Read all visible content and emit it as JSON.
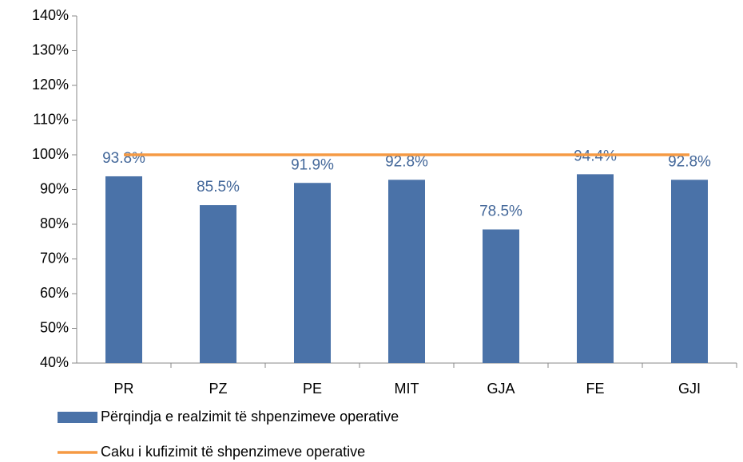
{
  "chart_data": {
    "type": "bar",
    "categories": [
      "PR",
      "PZ",
      "PE",
      "MIT",
      "GJA",
      "FE",
      "GJI"
    ],
    "series": [
      {
        "name": "Përqindja e realzimit të shpenzimeve operative",
        "color": "#4a72a8",
        "type": "bar",
        "values": [
          93.8,
          85.5,
          91.9,
          92.8,
          78.5,
          94.4,
          92.8
        ],
        "value_labels": [
          "93.8%",
          "85.5%",
          "91.9%",
          "92.8%",
          "78.5%",
          "94.4%",
          "92.8%"
        ]
      },
      {
        "name": "Caku i kufizimit të shpenzimeve operative",
        "color": "#f59a44",
        "type": "line",
        "values": [
          100,
          100,
          100,
          100,
          100,
          100,
          100
        ]
      }
    ],
    "ylim": [
      40,
      140
    ],
    "yticks": [
      {
        "value": 40,
        "label": "40%"
      },
      {
        "value": 50,
        "label": "50%"
      },
      {
        "value": 60,
        "label": "60%"
      },
      {
        "value": 70,
        "label": "70%"
      },
      {
        "value": 80,
        "label": "80%"
      },
      {
        "value": 90,
        "label": "90%"
      },
      {
        "value": 100,
        "label": "100%"
      },
      {
        "value": 110,
        "label": "110%"
      },
      {
        "value": 120,
        "label": "120%"
      },
      {
        "value": 130,
        "label": "130%"
      },
      {
        "value": 140,
        "label": "140%"
      }
    ],
    "grid": false,
    "legend": "bottom"
  }
}
